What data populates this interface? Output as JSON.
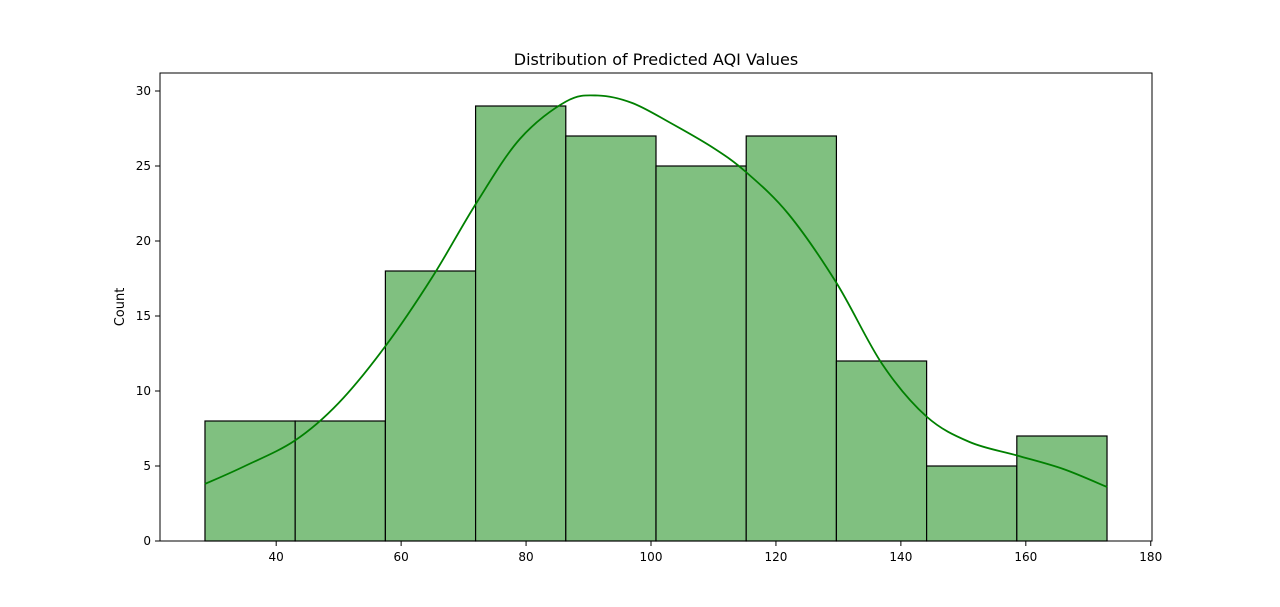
{
  "chart_data": {
    "type": "bar",
    "subtype": "histogram",
    "title": "Distribution of Predicted AQI Values",
    "xlabel": "",
    "ylabel": "Count",
    "bin_edges": [
      28.6,
      43.04,
      57.48,
      71.92,
      86.36,
      100.8,
      115.24,
      129.68,
      144.12,
      158.56,
      173.0
    ],
    "values": [
      8,
      8,
      18,
      29,
      27,
      25,
      27,
      12,
      5,
      7
    ],
    "xlim": [
      21.4,
      180.2
    ],
    "ylim": [
      0,
      31.2
    ],
    "xticks": [
      40,
      60,
      80,
      100,
      120,
      140,
      160,
      180
    ],
    "yticks": [
      0,
      5,
      10,
      15,
      20,
      25,
      30
    ],
    "kde": {
      "x": [
        28.6,
        35,
        43,
        50,
        57.5,
        65,
        72,
        79,
        86.4,
        91.5,
        97,
        103,
        110,
        115.2,
        122,
        129.7,
        137,
        144.1,
        151,
        158.6,
        166,
        173
      ],
      "y": [
        3.8,
        5.0,
        6.7,
        9.2,
        13.0,
        17.6,
        22.5,
        26.8,
        29.3,
        29.7,
        29.2,
        27.9,
        26.2,
        24.6,
        21.8,
        17.2,
        11.8,
        8.3,
        6.6,
        5.7,
        4.8,
        3.6
      ]
    },
    "colors": {
      "bar_fill": "#80c080",
      "bar_edge": "#000000",
      "kde_line": "#008000"
    },
    "grid": false,
    "legend": "none"
  }
}
